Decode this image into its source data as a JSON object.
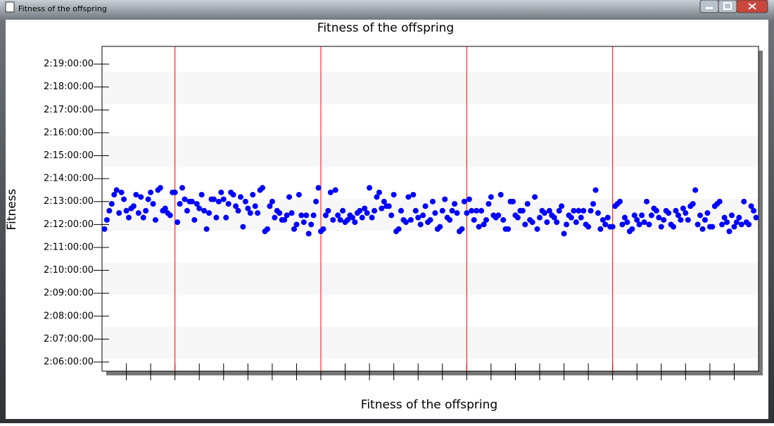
{
  "window": {
    "title": "Fitness of the offspring"
  },
  "chart_data": {
    "type": "scatter",
    "title": "Fitness of the offspring",
    "xlabel": "Fitness of the offspring",
    "ylabel": "Fitness",
    "color": "#0000ff",
    "values": [
      59.8,
      60.2,
      60.6,
      60.9,
      61.3,
      61.5,
      60.5,
      61.4,
      61.1,
      60.6,
      60.3,
      60.7,
      60.8,
      61.3,
      60.5,
      61.2,
      60.3,
      60.6,
      61.1,
      61.4,
      60.9,
      60.2,
      61.5,
      61.6,
      60.6,
      60.7,
      60.5,
      60.4,
      61.4,
      61.4,
      60.1,
      60.9,
      61.6,
      61.1,
      60.6,
      61.0,
      61.0,
      60.2,
      60.9,
      60.7,
      61.3,
      60.6,
      59.8,
      60.5,
      61.1,
      61.1,
      60.3,
      61.0,
      61.4,
      61.1,
      60.3,
      60.9,
      61.4,
      61.3,
      60.8,
      60.6,
      61.2,
      59.9,
      61.0,
      60.7,
      60.5,
      61.3,
      60.8,
      60.5,
      61.5,
      61.6,
      59.7,
      59.8,
      60.8,
      61.0,
      60.3,
      60.6,
      60.5,
      60.2,
      60.2,
      60.4,
      61.2,
      60.5,
      59.8,
      60.0,
      61.3,
      60.4,
      60.1,
      60.4,
      59.6,
      60.0,
      60.4,
      61.0,
      61.6,
      59.7,
      59.8,
      60.4,
      60.6,
      61.4,
      60.2,
      61.5,
      60.4,
      60.2,
      60.6,
      60.1,
      60.2,
      60.4,
      60.3,
      60.1,
      60.5,
      60.6,
      60.3,
      60.7,
      60.5,
      61.6,
      60.3,
      60.6,
      61.2,
      61.4,
      60.7,
      61.0,
      60.8,
      60.8,
      60.4,
      61.3,
      59.7,
      59.8,
      60.6,
      60.2,
      60.1,
      61.2,
      60.2,
      61.3,
      60.6,
      60.3,
      60.0,
      60.4,
      60.8,
      60.1,
      60.2,
      61.0,
      60.5,
      59.8,
      59.9,
      60.6,
      61.1,
      60.3,
      60.2,
      60.6,
      60.9,
      60.5,
      59.7,
      59.8,
      61.0,
      60.5,
      61.1,
      60.6,
      60.2,
      60.6,
      59.9,
      60.6,
      60.0,
      60.2,
      60.9,
      61.2,
      60.4,
      60.3,
      60.4,
      61.3,
      60.2,
      59.8,
      59.8,
      61.0,
      61.0,
      60.4,
      60.3,
      60.6,
      60.6,
      60.0,
      60.9,
      60.2,
      60.1,
      61.2,
      59.8,
      60.3,
      60.6,
      60.5,
      60.1,
      60.6,
      60.4,
      60.3,
      60.1,
      60.6,
      60.8,
      59.6,
      60.0,
      60.4,
      60.3,
      60.6,
      60.1,
      60.6,
      60.3,
      60.6,
      60.0,
      59.9,
      60.6,
      60.9,
      61.5,
      60.5,
      59.8,
      60.2,
      60.0,
      60.3,
      59.9,
      59.9,
      60.8,
      60.9,
      61.0,
      60.0,
      60.3,
      60.1,
      59.7,
      59.8,
      60.4,
      60.2,
      60.0,
      60.4,
      60.1,
      61.0,
      60.0,
      60.4,
      60.7,
      60.6,
      60.3,
      59.9,
      60.2,
      60.6,
      60.5,
      60.0,
      59.9,
      60.6,
      60.4,
      60.2,
      60.7,
      60.5,
      60.2,
      60.8,
      60.9,
      61.5,
      60.0,
      60.4,
      59.8,
      60.2,
      60.5,
      59.9,
      59.9,
      60.8,
      60.9,
      61.0,
      60.0,
      60.3,
      60.1,
      59.7,
      60.4,
      59.9,
      60.1,
      60.3,
      60.0,
      61.0,
      60.1,
      60.0,
      60.8,
      60.6,
      60.3
    ],
    "xlim": [
      -1,
      269
    ],
    "xticks": [
      9,
      19,
      29,
      39,
      49,
      59,
      69,
      79,
      89,
      99,
      109,
      119,
      129,
      139,
      149,
      159,
      169,
      179,
      189,
      199,
      209,
      219,
      229,
      239,
      249,
      259
    ],
    "vlines": [
      29,
      89,
      149,
      209
    ],
    "vline_color": "#ff0000",
    "ylim": [
      53.6,
      67.77
    ],
    "yticks": [
      {
        "value": 54,
        "label": "2:06:00:00"
      },
      {
        "value": 55,
        "label": "2:07:00:00"
      },
      {
        "value": 56,
        "label": "2:08:00:00"
      },
      {
        "value": 57,
        "label": "2:09:00:00"
      },
      {
        "value": 58,
        "label": "2:10:00:00"
      },
      {
        "value": 59,
        "label": "2:11:00:00"
      },
      {
        "value": 60,
        "label": "2:12:00:00"
      },
      {
        "value": 61,
        "label": "2:13:00:00"
      },
      {
        "value": 62,
        "label": "2:14:00:00"
      },
      {
        "value": 63,
        "label": "2:15:00:00"
      },
      {
        "value": 64,
        "label": "2:16:00:00"
      },
      {
        "value": 65,
        "label": "2:17:00:00"
      },
      {
        "value": 66,
        "label": "2:18:00:00"
      },
      {
        "value": 67,
        "label": "2:19:00:00"
      }
    ]
  }
}
